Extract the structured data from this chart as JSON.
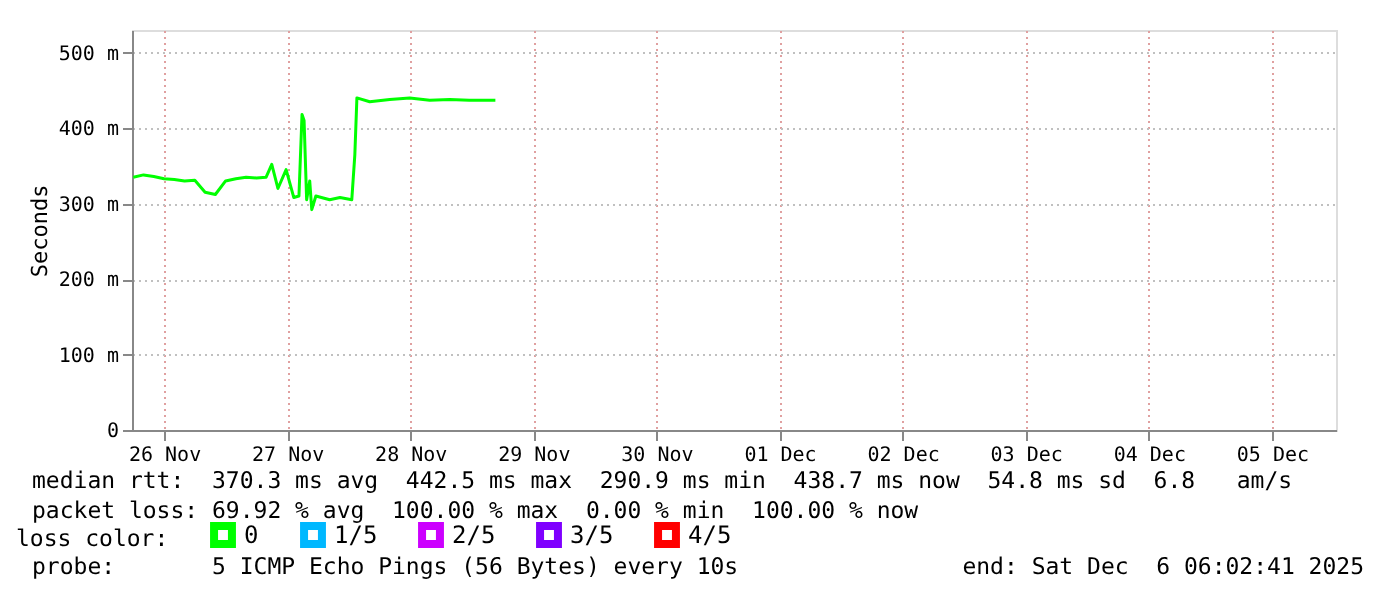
{
  "chart_data": {
    "type": "line",
    "ylabel": "Seconds",
    "legend_title": "loss color:",
    "legend": "bottom",
    "grid": true,
    "x": [
      "2025-11-26T06:00",
      "2025-11-26T08:00",
      "2025-11-26T10:00",
      "2025-11-26T12:00",
      "2025-11-26T14:00",
      "2025-11-26T16:00",
      "2025-11-26T18:00",
      "2025-11-26T20:00",
      "2025-11-26T22:00",
      "2025-11-27T00:00",
      "2025-11-27T02:00",
      "2025-11-27T04:00",
      "2025-11-27T06:00",
      "2025-11-27T07:54",
      "2025-11-27T09:00",
      "2025-11-27T10:12",
      "2025-11-27T11:48",
      "2025-11-27T13:18",
      "2025-11-27T14:18",
      "2025-11-27T14:54",
      "2025-11-27T15:18",
      "2025-11-27T15:48",
      "2025-11-27T16:24",
      "2025-11-27T16:48",
      "2025-11-27T17:36",
      "2025-11-27T20:18",
      "2025-11-27T22:18",
      "2025-11-28T00:36",
      "2025-11-28T01:12",
      "2025-11-28T01:36",
      "2025-11-28T04:06",
      "2025-11-28T08:00",
      "2025-11-28T11:54",
      "2025-11-28T15:48",
      "2025-11-28T19:42",
      "2025-11-28T23:30",
      "2025-11-29T04:36"
    ],
    "series": [
      {
        "name": "0",
        "color": "#00ff00",
        "values": [
          335,
          338,
          336,
          333,
          332,
          330,
          331,
          315,
          312,
          330,
          333,
          335,
          334,
          335,
          352,
          320,
          345,
          308,
          310,
          418,
          410,
          305,
          330,
          292,
          310,
          305,
          308,
          305,
          365,
          440,
          435,
          438,
          440,
          437,
          438,
          437,
          437
        ]
      },
      {
        "name": "1/5",
        "color": "#00b8ff",
        "values": [
          null,
          null,
          null,
          null,
          null,
          null,
          null,
          null,
          null,
          null,
          null,
          null,
          null,
          null,
          null,
          null,
          null,
          null,
          null,
          null,
          null,
          null,
          null,
          null,
          null,
          null,
          null,
          null,
          null,
          null,
          null,
          null,
          null,
          null,
          null,
          null,
          null
        ]
      },
      {
        "name": "2/5",
        "color": "#cc00ff",
        "values": [
          null,
          null,
          null,
          null,
          null,
          null,
          null,
          null,
          null,
          null,
          null,
          null,
          null,
          null,
          null,
          null,
          null,
          null,
          null,
          null,
          null,
          null,
          null,
          null,
          null,
          null,
          null,
          null,
          null,
          null,
          null,
          null,
          null,
          null,
          null,
          null,
          null
        ]
      },
      {
        "name": "3/5",
        "color": "#7f00ff",
        "values": [
          null,
          null,
          null,
          null,
          null,
          null,
          null,
          null,
          null,
          null,
          null,
          null,
          null,
          null,
          null,
          null,
          null,
          null,
          null,
          null,
          null,
          null,
          null,
          null,
          null,
          null,
          null,
          null,
          null,
          null,
          null,
          null,
          null,
          null,
          null,
          null,
          null
        ]
      },
      {
        "name": "4/5",
        "color": "#ff0000",
        "values": [
          null,
          null,
          null,
          null,
          null,
          null,
          null,
          null,
          null,
          null,
          null,
          null,
          null,
          null,
          null,
          null,
          null,
          null,
          null,
          null,
          null,
          null,
          null,
          null,
          null,
          null,
          null,
          null,
          null,
          null,
          null,
          null,
          null,
          null,
          null,
          null,
          null
        ]
      }
    ],
    "xlim": [
      "2025-11-26T05:45",
      "2025-12-06T00:30"
    ],
    "xticks": [
      {
        "value": "2025-11-26T12:00",
        "label": "26 Nov"
      },
      {
        "value": "2025-11-27T12:00",
        "label": "27 Nov"
      },
      {
        "value": "2025-11-28T12:00",
        "label": "28 Nov"
      },
      {
        "value": "2025-11-29T12:00",
        "label": "29 Nov"
      },
      {
        "value": "2025-11-30T12:00",
        "label": "30 Nov"
      },
      {
        "value": "2025-12-01T12:00",
        "label": "01 Dec"
      },
      {
        "value": "2025-12-02T12:00",
        "label": "02 Dec"
      },
      {
        "value": "2025-12-03T12:00",
        "label": "03 Dec"
      },
      {
        "value": "2025-12-04T12:00",
        "label": "04 Dec"
      },
      {
        "value": "2025-12-05T12:00",
        "label": "05 Dec"
      }
    ],
    "ylim": [
      0,
      530
    ],
    "yticks": [
      0,
      {
        "value": 100,
        "label": "100 m"
      },
      {
        "value": 200,
        "label": "200 m"
      },
      {
        "value": 300,
        "label": "300 m"
      },
      {
        "value": 400,
        "label": "400 m"
      },
      {
        "value": 500,
        "label": "500 m"
      }
    ],
    "annotations": [
      "median rtt:  370.3 ms avg  442.5 ms max  290.9 ms min  438.7 ms now  54.8 ms sd  6.8   am/s",
      "packet loss: 69.92 % avg  100.00 % max  0.00 % min  100.00 % now",
      "probe:       5 ICMP Echo Pings (56 Bytes) every 10s",
      "end: Sat Dec  6 06:02:41 2025"
    ]
  }
}
